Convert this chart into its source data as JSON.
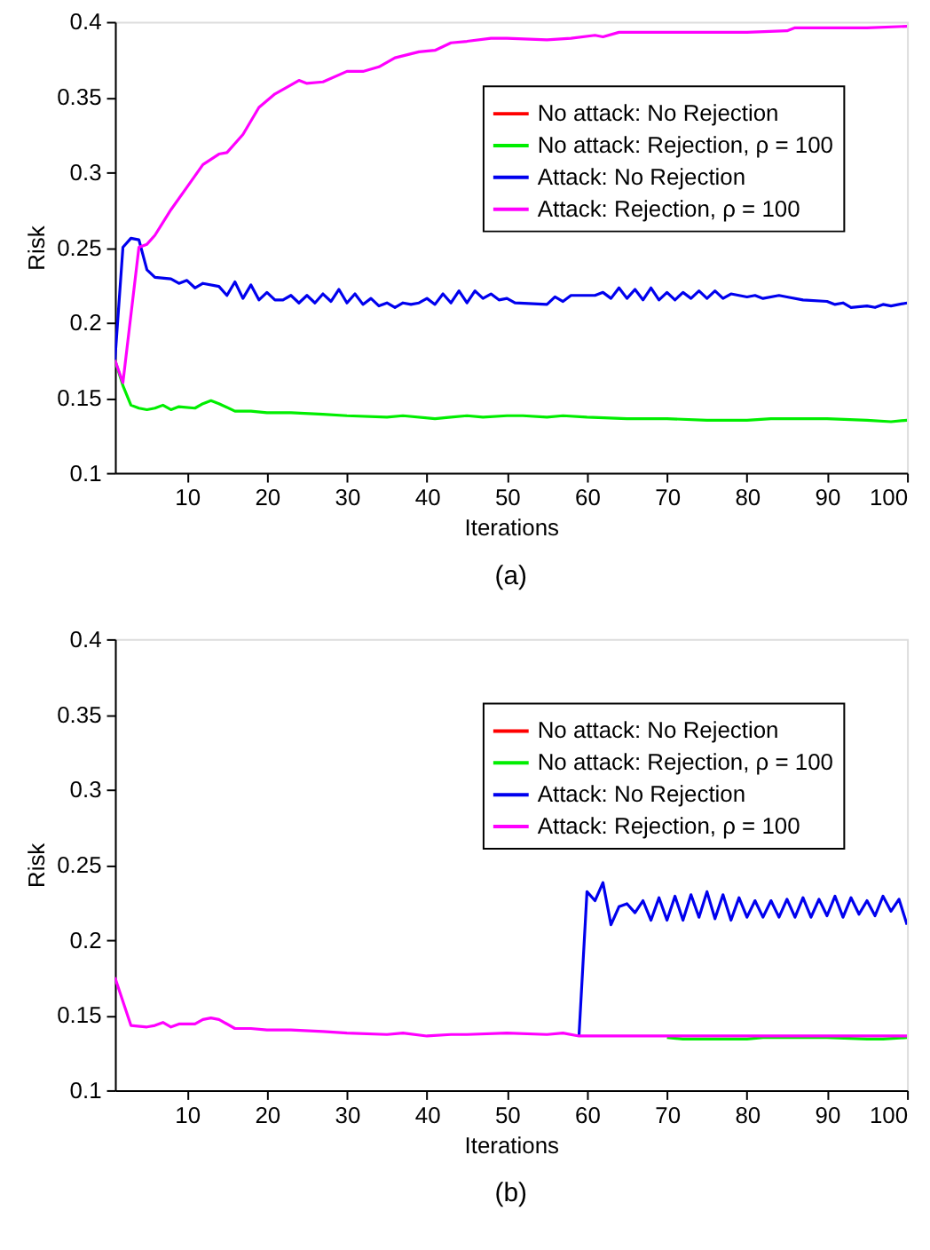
{
  "chart_data": [
    {
      "type": "line",
      "xlabel": "Iterations",
      "ylabel": "Risk",
      "annotations": [
        "(a)"
      ],
      "xlim": [
        1,
        100
      ],
      "xticks": [
        10,
        20,
        30,
        40,
        50,
        60,
        70,
        80,
        90,
        100
      ],
      "ylim": [
        0.1,
        0.4
      ],
      "yticks": [
        0.1,
        0.15,
        0.2,
        0.25,
        0.3,
        0.35,
        0.4
      ],
      "grid": false,
      "legend": "top right",
      "line_style": "solid",
      "marker": "none",
      "series": [
        {
          "name": "No attack: No Rejection",
          "color": "#ff0000"
        },
        {
          "name": "No attack: Rejection, ρ = 100",
          "color": "#00ee00",
          "x": [
            1,
            2,
            3,
            4,
            5,
            6,
            7,
            8,
            9,
            11,
            12,
            13,
            14,
            16,
            17,
            18,
            20,
            23,
            27,
            30,
            35,
            37,
            41,
            43,
            45,
            47,
            50,
            52,
            55,
            57,
            60,
            65,
            70,
            75,
            80,
            83,
            90,
            95,
            98,
            100
          ],
          "values": [
            0.175,
            0.158,
            0.145,
            0.143,
            0.142,
            0.143,
            0.145,
            0.142,
            0.144,
            0.143,
            0.146,
            0.148,
            0.146,
            0.141,
            0.141,
            0.141,
            0.14,
            0.14,
            0.139,
            0.138,
            0.137,
            0.138,
            0.136,
            0.137,
            0.138,
            0.137,
            0.138,
            0.138,
            0.137,
            0.138,
            0.137,
            0.136,
            0.136,
            0.135,
            0.135,
            0.136,
            0.136,
            0.135,
            0.134,
            0.135
          ]
        },
        {
          "name": "Attack: No Rejection",
          "color": "#0000ee",
          "x": [
            1,
            2,
            3,
            4,
            5,
            6,
            8,
            9,
            10,
            11,
            12,
            14,
            15,
            16,
            17,
            18,
            19,
            20,
            21,
            22,
            23,
            24,
            25,
            26,
            27,
            28,
            29,
            30,
            31,
            32,
            33,
            34,
            35,
            36,
            37,
            38,
            39,
            40,
            41,
            42,
            43,
            44,
            45,
            46,
            47,
            48,
            49,
            50,
            51,
            55,
            56,
            57,
            58,
            61,
            62,
            63,
            64,
            65,
            66,
            67,
            68,
            69,
            70,
            71,
            72,
            73,
            74,
            75,
            76,
            77,
            78,
            80,
            81,
            82,
            84,
            85,
            87,
            90,
            91,
            92,
            93,
            95,
            96,
            97,
            98,
            100
          ],
          "values": [
            0.175,
            0.25,
            0.256,
            0.255,
            0.235,
            0.23,
            0.229,
            0.226,
            0.228,
            0.223,
            0.226,
            0.224,
            0.218,
            0.227,
            0.216,
            0.225,
            0.215,
            0.22,
            0.215,
            0.215,
            0.218,
            0.213,
            0.218,
            0.213,
            0.219,
            0.214,
            0.222,
            0.213,
            0.219,
            0.212,
            0.216,
            0.211,
            0.213,
            0.21,
            0.213,
            0.212,
            0.213,
            0.216,
            0.212,
            0.219,
            0.213,
            0.221,
            0.213,
            0.221,
            0.216,
            0.219,
            0.215,
            0.216,
            0.213,
            0.212,
            0.217,
            0.214,
            0.218,
            0.218,
            0.22,
            0.216,
            0.223,
            0.216,
            0.222,
            0.215,
            0.223,
            0.215,
            0.22,
            0.215,
            0.22,
            0.216,
            0.221,
            0.216,
            0.221,
            0.216,
            0.219,
            0.217,
            0.218,
            0.216,
            0.218,
            0.217,
            0.215,
            0.214,
            0.212,
            0.213,
            0.21,
            0.211,
            0.21,
            0.212,
            0.211,
            0.213
          ]
        },
        {
          "name": "Attack: Rejection, ρ = 100",
          "color": "#ff00ff",
          "x": [
            1,
            2,
            4,
            5,
            6,
            8,
            10,
            12,
            14,
            15,
            17,
            19,
            21,
            24,
            25,
            27,
            30,
            32,
            34,
            36,
            39,
            41,
            43,
            45,
            48,
            50,
            55,
            58,
            61,
            62,
            64,
            70,
            75,
            80,
            85,
            86,
            90,
            95,
            100
          ],
          "values": [
            0.175,
            0.16,
            0.25,
            0.252,
            0.258,
            0.275,
            0.29,
            0.305,
            0.312,
            0.313,
            0.325,
            0.343,
            0.352,
            0.361,
            0.359,
            0.36,
            0.367,
            0.367,
            0.37,
            0.376,
            0.38,
            0.381,
            0.386,
            0.387,
            0.389,
            0.389,
            0.388,
            0.389,
            0.391,
            0.39,
            0.393,
            0.393,
            0.393,
            0.393,
            0.394,
            0.396,
            0.396,
            0.396,
            0.397
          ]
        }
      ]
    },
    {
      "type": "line",
      "xlabel": "Iterations",
      "ylabel": "Risk",
      "annotations": [
        "(b)"
      ],
      "xlim": [
        1,
        100
      ],
      "xticks": [
        10,
        20,
        30,
        40,
        50,
        60,
        70,
        80,
        90,
        100
      ],
      "ylim": [
        0.1,
        0.4
      ],
      "yticks": [
        0.1,
        0.15,
        0.2,
        0.25,
        0.3,
        0.35,
        0.4
      ],
      "grid": false,
      "legend": "top right",
      "line_style": "solid",
      "marker": "none",
      "series": [
        {
          "name": "No attack: No Rejection",
          "color": "#ff0000"
        },
        {
          "name": "No attack: Rejection, ρ = 100",
          "color": "#00ee00",
          "x": [
            70,
            72,
            75,
            80,
            82,
            90,
            95,
            97,
            100
          ],
          "values": [
            0.135,
            0.134,
            0.134,
            0.134,
            0.135,
            0.135,
            0.134,
            0.134,
            0.135
          ]
        },
        {
          "name": "Attack: No Rejection",
          "color": "#0000ee",
          "x": [
            59,
            60,
            61,
            62,
            63,
            64,
            65,
            66,
            67,
            68,
            69,
            70,
            71,
            72,
            73,
            74,
            75,
            76,
            77,
            78,
            79,
            80,
            81,
            82,
            83,
            84,
            85,
            86,
            87,
            88,
            89,
            90,
            91,
            92,
            93,
            94,
            95,
            96,
            97,
            98,
            99,
            100
          ],
          "values": [
            0.136,
            0.232,
            0.226,
            0.238,
            0.21,
            0.222,
            0.224,
            0.218,
            0.226,
            0.213,
            0.228,
            0.213,
            0.229,
            0.213,
            0.23,
            0.215,
            0.232,
            0.214,
            0.23,
            0.213,
            0.228,
            0.215,
            0.226,
            0.215,
            0.226,
            0.215,
            0.227,
            0.215,
            0.228,
            0.215,
            0.227,
            0.216,
            0.229,
            0.215,
            0.228,
            0.217,
            0.226,
            0.216,
            0.229,
            0.219,
            0.227,
            0.21
          ]
        },
        {
          "name": "Attack: Rejection, ρ = 100",
          "color": "#ff00ff",
          "x": [
            1,
            3,
            5,
            6,
            7,
            8,
            9,
            11,
            12,
            13,
            14,
            16,
            18,
            20,
            23,
            27,
            30,
            35,
            37,
            40,
            43,
            45,
            50,
            55,
            57,
            59,
            65,
            80,
            100
          ],
          "values": [
            0.175,
            0.143,
            0.142,
            0.143,
            0.145,
            0.142,
            0.144,
            0.144,
            0.147,
            0.148,
            0.147,
            0.141,
            0.141,
            0.14,
            0.14,
            0.139,
            0.138,
            0.137,
            0.138,
            0.136,
            0.137,
            0.137,
            0.138,
            0.137,
            0.138,
            0.136,
            0.136,
            0.136,
            0.136
          ]
        }
      ]
    }
  ]
}
